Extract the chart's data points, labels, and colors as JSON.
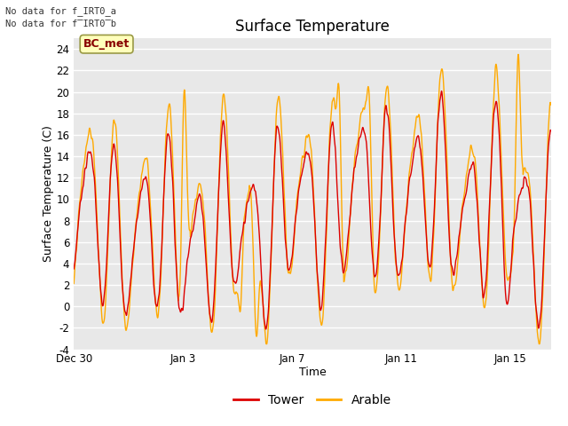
{
  "title": "Surface Temperature",
  "xlabel": "Time",
  "ylabel": "Surface Temperature (C)",
  "ylim": [
    -4,
    25
  ],
  "yticks": [
    -4,
    -2,
    0,
    2,
    4,
    6,
    8,
    10,
    12,
    14,
    16,
    18,
    20,
    22,
    24
  ],
  "bg_color": "#e8e8e8",
  "fig_bg": "#ffffff",
  "tower_color": "#dd0000",
  "arable_color": "#ffaa00",
  "text_no_data_1": "No data for f_IRT0_a",
  "text_no_data_2": "No data for f̅IRT0̅b",
  "bc_met_label": "BC_met",
  "bc_met_bg": "#ffffbb",
  "bc_met_border": "#999944",
  "bc_met_text_color": "#880000",
  "legend_tower": "Tower",
  "legend_arable": "Arable",
  "x_tick_labels": [
    "Dec 30",
    "Jan 3",
    "Jan 7",
    "Jan 11",
    "Jan 15"
  ],
  "x_tick_positions": [
    0,
    4,
    8,
    12,
    16
  ],
  "total_days": 17.5,
  "line_width": 1.0,
  "grid_color": "#ffffff",
  "grid_lw": 1.0
}
